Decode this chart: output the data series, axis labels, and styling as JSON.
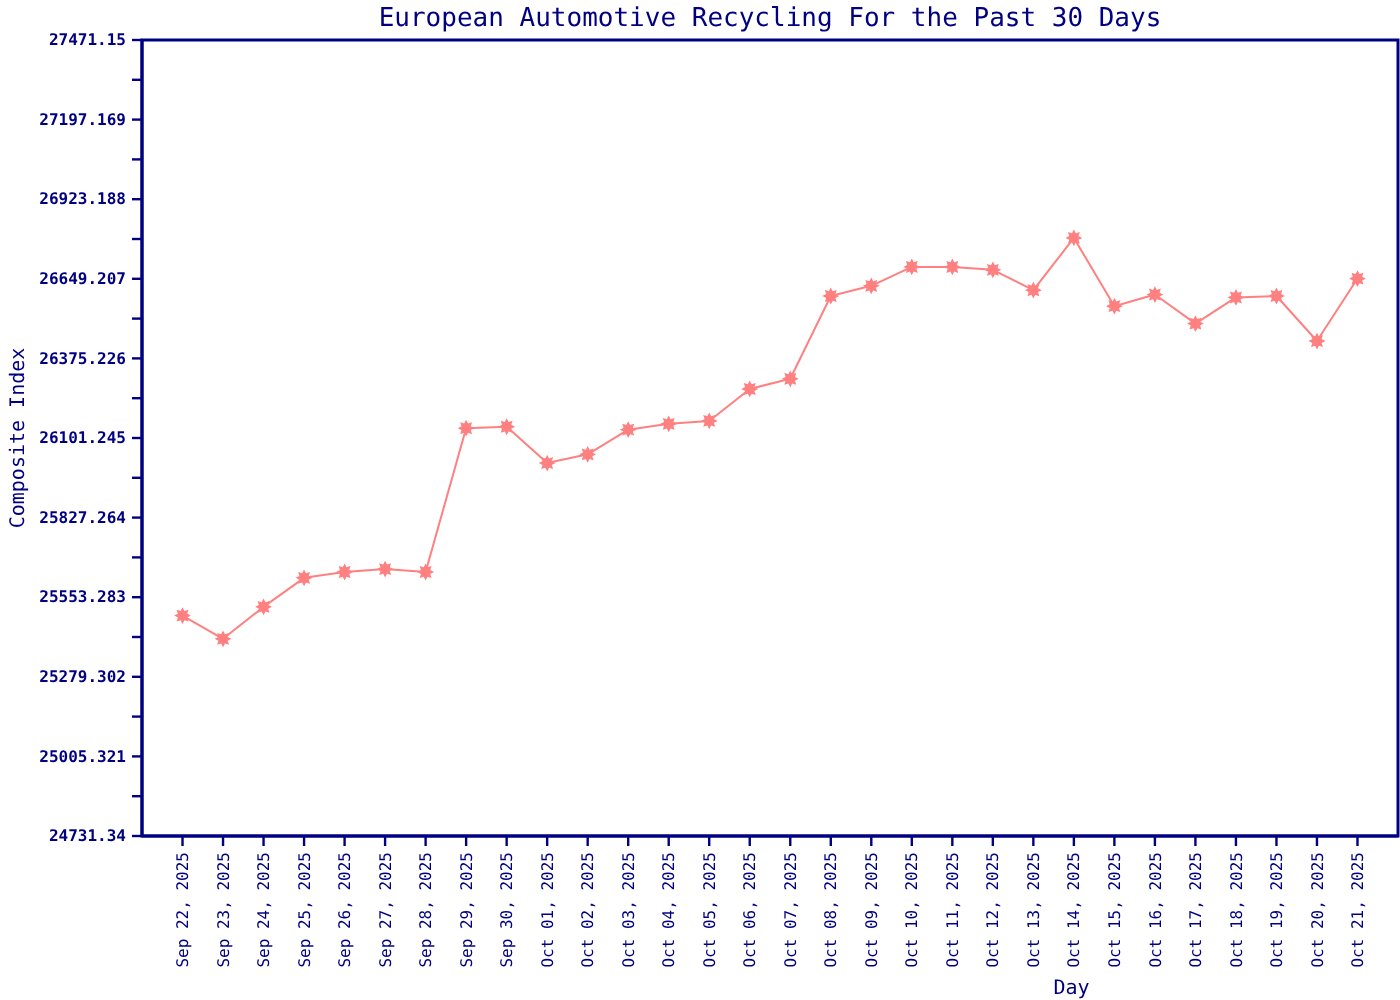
{
  "chart_data": {
    "type": "line",
    "title": "European Automotive Recycling For the Past 30 Days",
    "xlabel": "Day",
    "ylabel": "Composite Index",
    "categories": [
      "Sep 22, 2025",
      "Sep 23, 2025",
      "Sep 24, 2025",
      "Sep 25, 2025",
      "Sep 26, 2025",
      "Sep 27, 2025",
      "Sep 28, 2025",
      "Sep 29, 2025",
      "Sep 30, 2025",
      "Oct 01, 2025",
      "Oct 02, 2025",
      "Oct 03, 2025",
      "Oct 04, 2025",
      "Oct 05, 2025",
      "Oct 06, 2025",
      "Oct 07, 2025",
      "Oct 08, 2025",
      "Oct 09, 2025",
      "Oct 10, 2025",
      "Oct 11, 2025",
      "Oct 12, 2025",
      "Oct 13, 2025",
      "Oct 14, 2025",
      "Oct 15, 2025",
      "Oct 16, 2025",
      "Oct 17, 2025",
      "Oct 18, 2025",
      "Oct 19, 2025",
      "Oct 20, 2025",
      "Oct 21, 2025"
    ],
    "series": [
      {
        "color": "#ff8080",
        "values": [
          25490,
          25410,
          25520,
          25620,
          25640,
          25650,
          25640,
          26135,
          26140,
          26015,
          26045,
          26130,
          26150,
          26160,
          26270,
          26305,
          26590,
          26625,
          26690,
          26690,
          26680,
          26610,
          26790,
          26555,
          26595,
          26495,
          26585,
          26590,
          26435,
          26650
        ]
      }
    ],
    "ylim": [
      24731.34,
      27471.15
    ],
    "yticks": [
      24731.34,
      {
        "value": 24868.3305,
        "label": null
      },
      25005.321,
      {
        "value": 25142.3115,
        "label": null
      },
      25279.302,
      {
        "value": 25416.2925,
        "label": null
      },
      25553.283,
      {
        "value": 25690.2735,
        "label": null
      },
      25827.264,
      {
        "value": 25964.2545,
        "label": null
      },
      26101.245,
      {
        "value": 26238.2355,
        "label": null
      },
      26375.226,
      {
        "value": 26512.2165,
        "label": null
      },
      26649.207,
      {
        "value": 26786.1975,
        "label": null
      },
      26923.188,
      {
        "value": 27060.1785,
        "label": null
      },
      27197.169,
      {
        "value": 27334.1595,
        "label": null
      },
      27471.15
    ],
    "marker": "star"
  }
}
